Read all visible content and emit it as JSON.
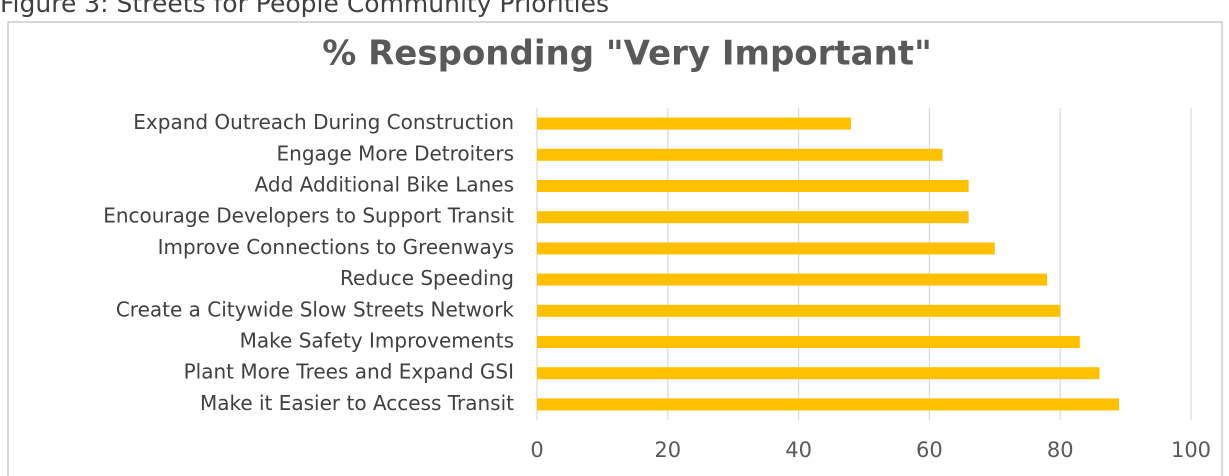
{
  "chart_data": {
    "type": "bar",
    "orientation": "horizontal",
    "caption": "Figure 3: Streets for People Community Priorities",
    "title": "% Responding \"Very Important\"",
    "categories": [
      "Expand Outreach During Construction",
      "Engage More Detroiters",
      "Add Additional Bike Lanes",
      "Encourage Developers to Support Transit",
      "Improve Connections to Greenways",
      "Reduce Speeding",
      "Create a Citywide Slow Streets Network",
      "Make Safety Improvements",
      "Plant More Trees and Expand GSI",
      "Make it Easier to Access Transit"
    ],
    "values": [
      48,
      62,
      66,
      66,
      70,
      78,
      80,
      83,
      86,
      89
    ],
    "color": "#ffc000",
    "xlim": [
      0,
      100
    ],
    "xticks": [
      0,
      20,
      40,
      60,
      80,
      100
    ],
    "grid": true
  }
}
